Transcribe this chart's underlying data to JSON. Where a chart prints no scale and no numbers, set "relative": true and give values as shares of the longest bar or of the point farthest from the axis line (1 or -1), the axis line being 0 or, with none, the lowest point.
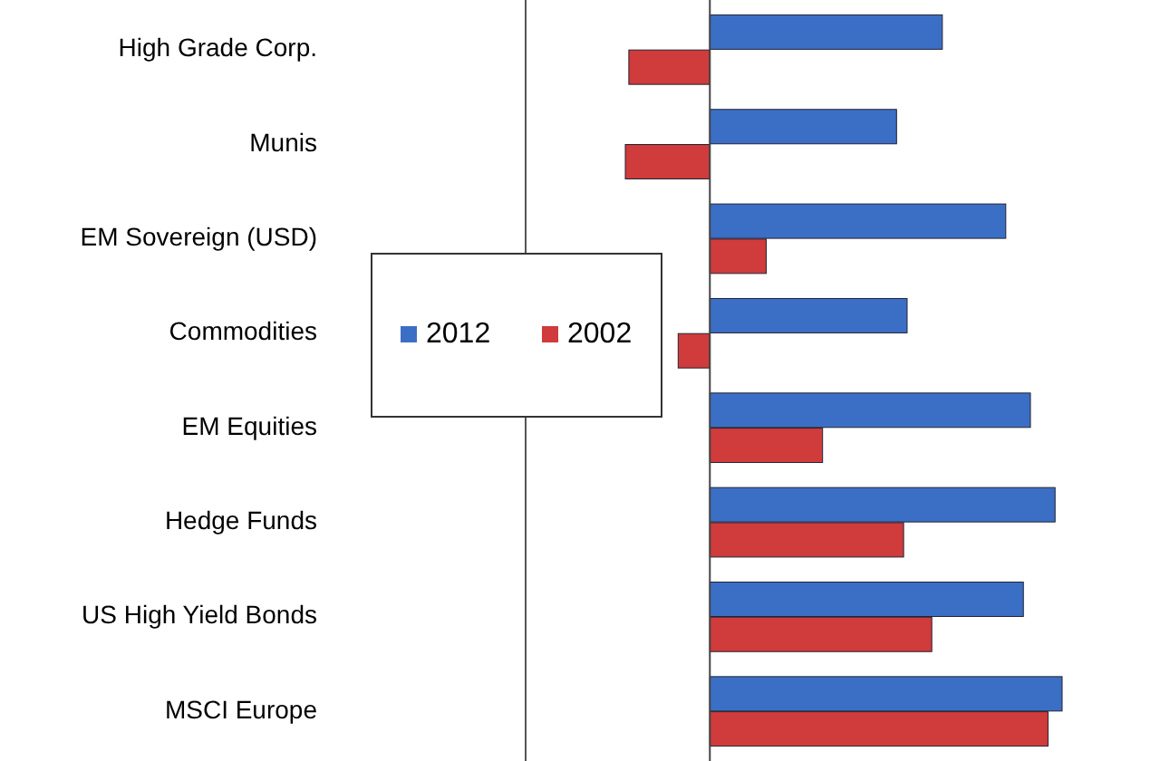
{
  "chart_data": {
    "type": "bar",
    "orientation": "horizontal",
    "relative": true,
    "legend": "left",
    "categories": [
      "High Grade Corp.",
      "Munis",
      "EM Sovereign (USD)",
      "Commodities",
      "EM Equities",
      "Hedge Funds",
      "US High Yield Bonds",
      "MSCI Europe"
    ],
    "series": [
      {
        "name": "2012",
        "color": "#3b6fc6",
        "values": [
          0.66,
          0.53,
          0.84,
          0.56,
          0.91,
          0.98,
          0.89,
          1.0
        ]
      },
      {
        "name": "2002",
        "color": "#d03b3b",
        "values": [
          -0.23,
          -0.24,
          0.16,
          -0.09,
          0.32,
          0.55,
          0.63,
          0.96
        ]
      }
    ]
  }
}
